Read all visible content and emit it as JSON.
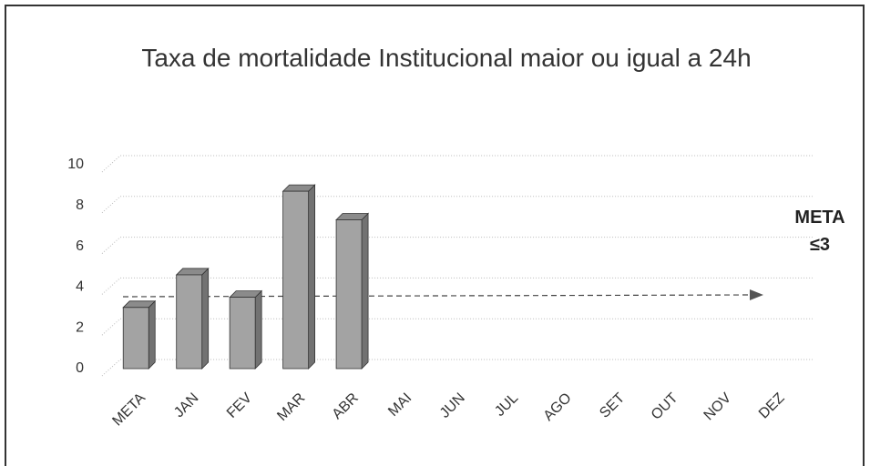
{
  "chart_data": {
    "type": "bar3d",
    "title": "Taxa de mortalidade Institucional maior ou igual a 24h",
    "annotation": "META ≤3",
    "categories": [
      "META",
      "JAN",
      "FEV",
      "MAR",
      "ABR",
      "MAI",
      "JUN",
      "JUL",
      "AGO",
      "SET",
      "OUT",
      "NOV",
      "DEZ"
    ],
    "values": [
      3,
      4.6,
      3.5,
      8.7,
      7.3,
      null,
      null,
      null,
      null,
      null,
      null,
      null,
      null
    ],
    "color": "#a3a3a3",
    "ylim": [
      0,
      10
    ],
    "yticks": [
      0,
      2,
      4,
      6,
      8,
      10
    ],
    "grid": true
  }
}
